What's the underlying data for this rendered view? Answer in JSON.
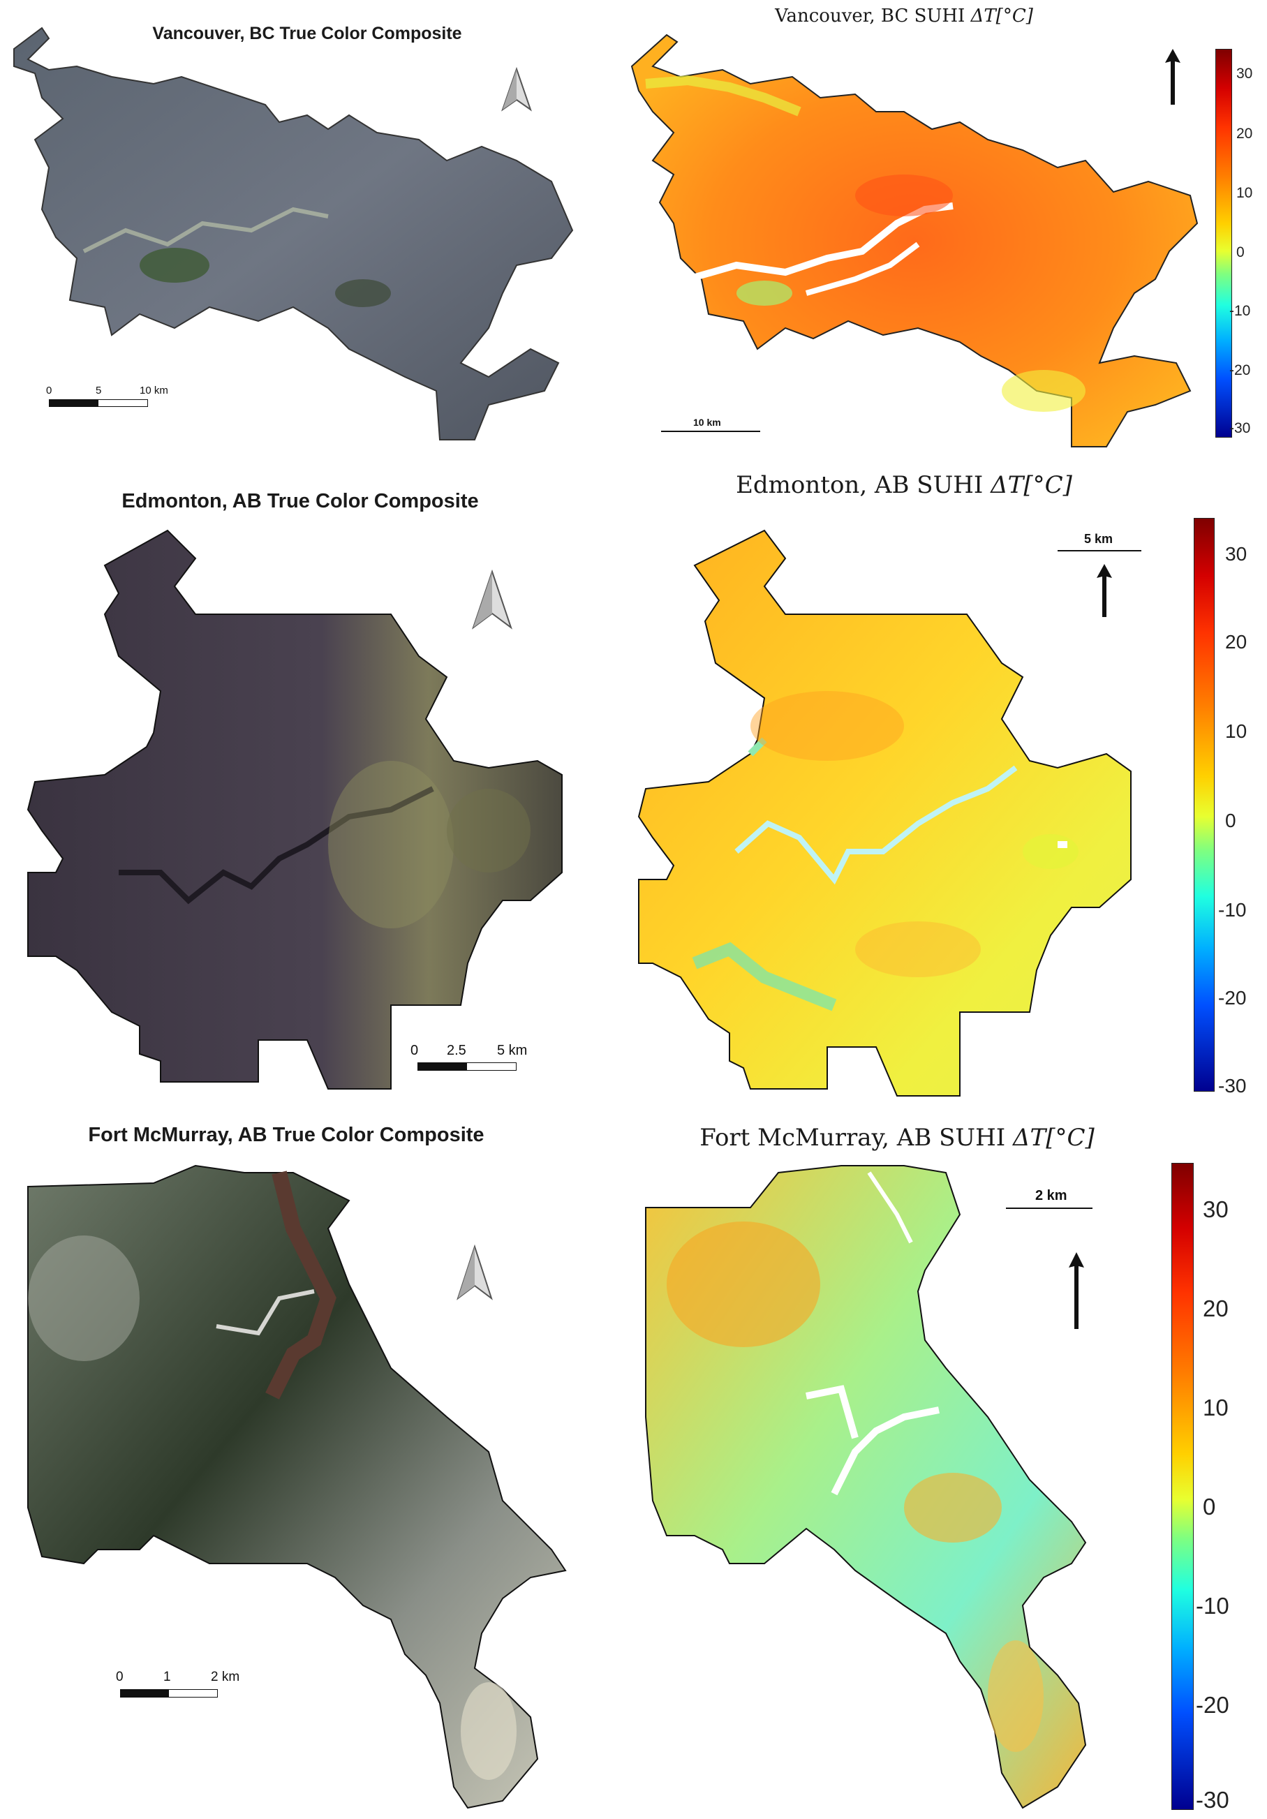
{
  "panels": {
    "van_tc": {
      "title": "Vancouver, BC True Color Composite",
      "scale": [
        "0",
        "5",
        "10 km"
      ]
    },
    "van_suhi": {
      "title_prefix": "Vancouver, BC SUHI ",
      "title_math": "ΔT[°C]",
      "scale": "10 km",
      "ticks": [
        "30",
        "20",
        "10",
        "0",
        "-10",
        "-20",
        "-30"
      ]
    },
    "edm_tc": {
      "title": "Edmonton, AB True Color Composite",
      "scale": [
        "0",
        "2.5",
        "5 km"
      ]
    },
    "edm_suhi": {
      "title_prefix": "Edmonton, AB SUHI ",
      "title_math": "ΔT[°C]",
      "scale": "5 km",
      "ticks": [
        "30",
        "20",
        "10",
        "0",
        "-10",
        "-20",
        "-30"
      ]
    },
    "fmm_tc": {
      "title": "Fort McMurray,  AB True Color Composite",
      "scale": [
        "0",
        "1",
        "2 km"
      ]
    },
    "fmm_suhi": {
      "title_prefix": "Fort McMurray, AB SUHI ",
      "title_math": "ΔT[°C]",
      "scale": "2 km",
      "ticks": [
        "30",
        "20",
        "10",
        "0",
        "-10",
        "-20",
        "-30"
      ]
    }
  },
  "colormap": {
    "max": 30,
    "min": -30,
    "colors": [
      "#7f0000",
      "#ff3300",
      "#ffd000",
      "#7fff80",
      "#20ffe0",
      "#0050ff",
      "#00008f"
    ]
  },
  "icons": [
    "north-arrow-icon",
    "north-arrow-icon",
    "north-arrow-icon",
    "north-arrow-icon",
    "north-arrow-icon",
    "north-arrow-icon"
  ]
}
